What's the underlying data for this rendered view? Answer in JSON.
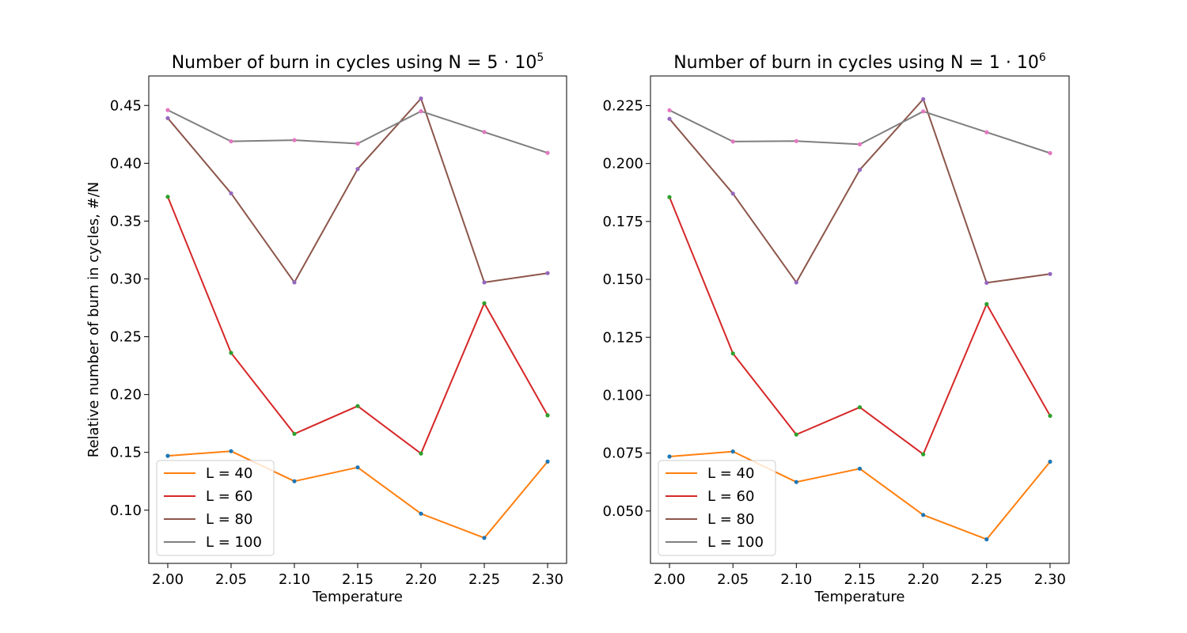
{
  "chart_data": [
    {
      "type": "line",
      "title": "Number of burn in cycles using N = 5 · 10",
      "title_superscript": "5",
      "xlabel": "Temperature",
      "ylabel": "Relative number of burn in cycles, #/N",
      "x": [
        2.0,
        2.05,
        2.1,
        2.15,
        2.2,
        2.25,
        2.3
      ],
      "xticks": [
        2.0,
        2.05,
        2.1,
        2.15,
        2.2,
        2.25,
        2.3
      ],
      "xtick_labels": [
        "2.00",
        "2.05",
        "2.10",
        "2.15",
        "2.20",
        "2.25",
        "2.30"
      ],
      "xlim": [
        1.985,
        2.315
      ],
      "yticks": [
        0.1,
        0.15,
        0.2,
        0.25,
        0.3,
        0.35,
        0.4,
        0.45
      ],
      "ytick_labels": [
        "0.10",
        "0.15",
        "0.20",
        "0.25",
        "0.30",
        "0.35",
        "0.40",
        "0.45"
      ],
      "ylim": [
        0.054,
        0.4755
      ],
      "legend": "lower-left",
      "grid": false,
      "series": [
        {
          "name": "L = 40",
          "color": "#ff7f0e",
          "marker_color": "#1f77b4",
          "values": [
            0.147,
            0.151,
            0.125,
            0.137,
            0.097,
            0.076,
            0.142
          ]
        },
        {
          "name": "L = 60",
          "color": "#d62728",
          "marker_color": "#2ca02c",
          "values": [
            0.371,
            0.236,
            0.166,
            0.19,
            0.149,
            0.279,
            0.182
          ]
        },
        {
          "name": "L = 80",
          "color": "#8c564b",
          "marker_color": "#9467bd",
          "values": [
            0.439,
            0.374,
            0.297,
            0.395,
            0.456,
            0.297,
            0.305
          ]
        },
        {
          "name": "L = 100",
          "color": "#7f7f7f",
          "marker_color": "#e377c2",
          "values": [
            0.446,
            0.419,
            0.42,
            0.417,
            0.445,
            0.427,
            0.409
          ]
        }
      ]
    },
    {
      "type": "line",
      "title": "Number of burn in cycles using N = 1 · 10",
      "title_superscript": "6",
      "xlabel": "Temperature",
      "ylabel": "",
      "x": [
        2.0,
        2.05,
        2.1,
        2.15,
        2.2,
        2.25,
        2.3
      ],
      "xticks": [
        2.0,
        2.05,
        2.1,
        2.15,
        2.2,
        2.25,
        2.3
      ],
      "xtick_labels": [
        "2.00",
        "2.05",
        "2.10",
        "2.15",
        "2.20",
        "2.25",
        "2.30"
      ],
      "xlim": [
        1.985,
        2.315
      ],
      "yticks": [
        0.05,
        0.075,
        0.1,
        0.125,
        0.15,
        0.175,
        0.2,
        0.225
      ],
      "ytick_labels": [
        "0.050",
        "0.075",
        "0.100",
        "0.125",
        "0.150",
        "0.175",
        "0.200",
        "0.225"
      ],
      "ylim": [
        0.0274,
        0.2378
      ],
      "legend": "lower-left",
      "grid": false,
      "series": [
        {
          "name": "L = 40",
          "color": "#ff7f0e",
          "marker_color": "#1f77b4",
          "values": [
            0.0735,
            0.0757,
            0.0625,
            0.0683,
            0.0483,
            0.0378,
            0.0713
          ]
        },
        {
          "name": "L = 60",
          "color": "#d62728",
          "marker_color": "#2ca02c",
          "values": [
            0.1855,
            0.118,
            0.083,
            0.0948,
            0.0745,
            0.1393,
            0.0911
          ]
        },
        {
          "name": "L = 80",
          "color": "#8c564b",
          "marker_color": "#9467bd",
          "values": [
            0.2193,
            0.187,
            0.1487,
            0.1973,
            0.2278,
            0.1485,
            0.1523
          ]
        },
        {
          "name": "L = 100",
          "color": "#7f7f7f",
          "marker_color": "#e377c2",
          "values": [
            0.223,
            0.2095,
            0.2097,
            0.2083,
            0.2225,
            0.2135,
            0.2045
          ]
        }
      ]
    }
  ]
}
